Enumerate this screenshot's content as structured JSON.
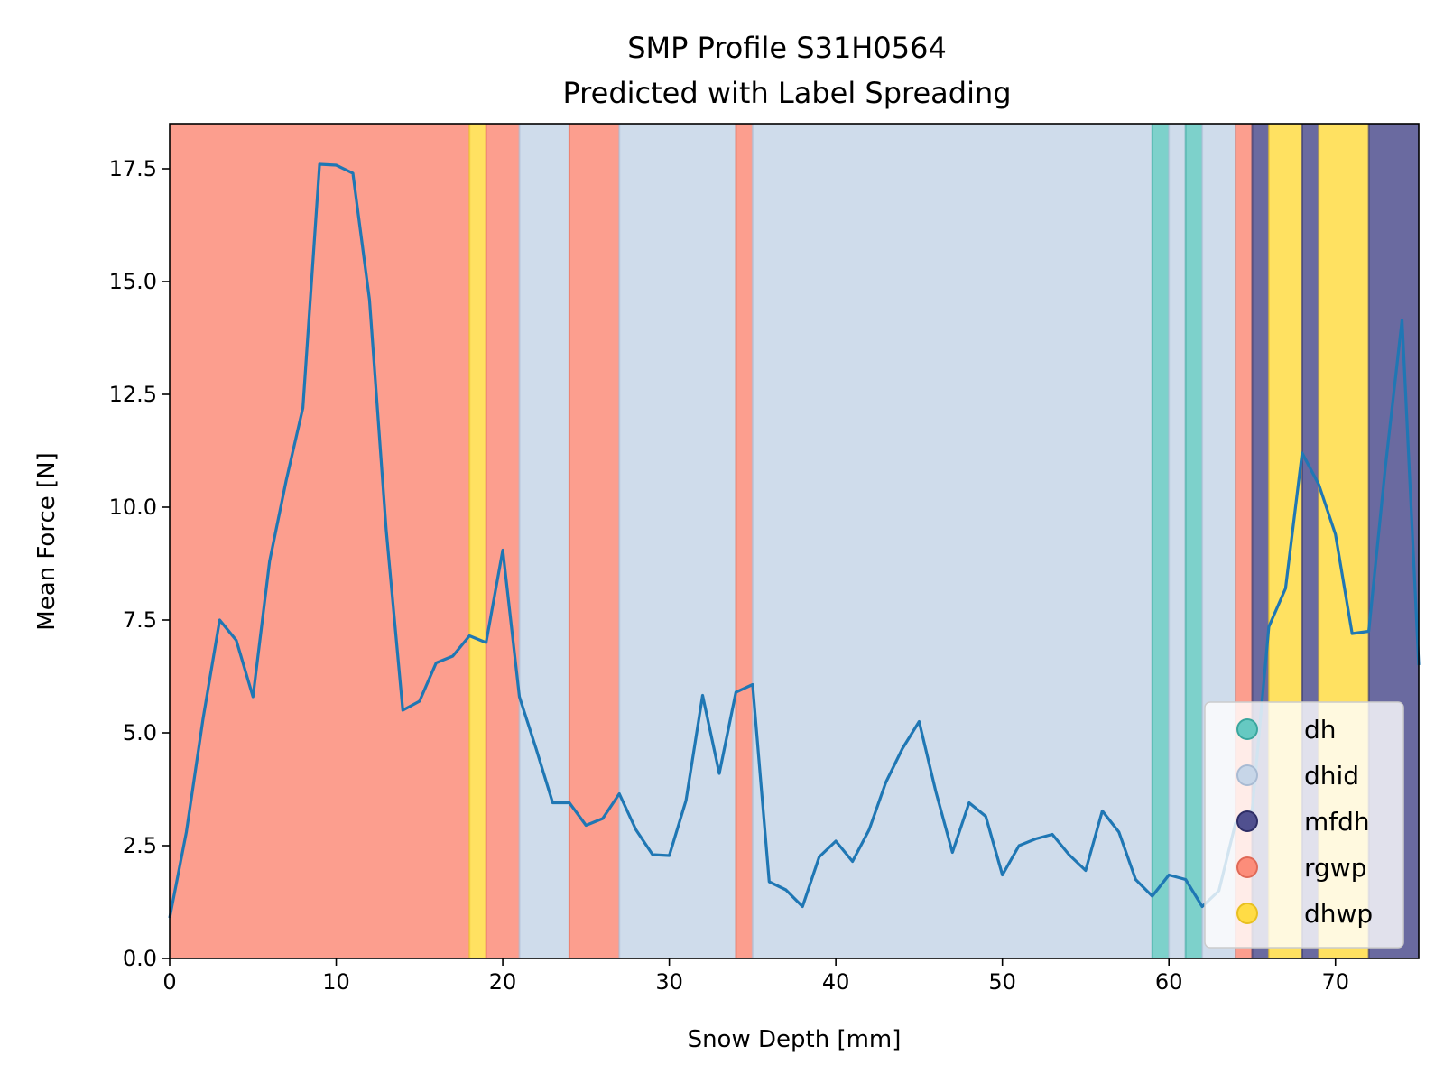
{
  "chart_data": {
    "type": "line",
    "title": "SMP Profile S31H0564",
    "subtitle": "Predicted with Label Spreading",
    "xlabel": "Snow Depth [mm]",
    "ylabel": "Mean Force [N]",
    "xlim": [
      0,
      75
    ],
    "ylim": [
      0,
      18.5
    ],
    "xticks": [
      0,
      10,
      20,
      30,
      40,
      50,
      60,
      70
    ],
    "xtick_labels": [
      "0",
      "10",
      "20",
      "30",
      "40",
      "50",
      "60",
      "70"
    ],
    "yticks": [
      0,
      2.5,
      5,
      7.5,
      10,
      12.5,
      15,
      17.5
    ],
    "ytick_labels": [
      "0.0",
      "2.5",
      "5.0",
      "7.5",
      "10.0",
      "12.5",
      "15.0",
      "17.5"
    ],
    "grid": false,
    "legend_placement": "lower-right",
    "line_color": "#1f77b4",
    "classes": [
      {
        "label": "dh",
        "color": "#66c9c2",
        "edge": "#3aa69e"
      },
      {
        "label": "dhid",
        "color": "#c7d6e8",
        "edge": "#a9bbd3"
      },
      {
        "label": "mfdh",
        "color": "#50508f",
        "edge": "#2e2e66"
      },
      {
        "label": "rgwp",
        "color": "#fc8d7a",
        "edge": "#e06a58"
      },
      {
        "label": "dhwp",
        "color": "#ffdc45",
        "edge": "#e8c020"
      }
    ],
    "segments": [
      {
        "start": 0,
        "end": 18,
        "class": "rgwp"
      },
      {
        "start": 18,
        "end": 19,
        "class": "dhwp"
      },
      {
        "start": 19,
        "end": 21,
        "class": "rgwp"
      },
      {
        "start": 21,
        "end": 24,
        "class": "dhid"
      },
      {
        "start": 24,
        "end": 27,
        "class": "rgwp"
      },
      {
        "start": 27,
        "end": 34,
        "class": "dhid"
      },
      {
        "start": 34,
        "end": 35,
        "class": "rgwp"
      },
      {
        "start": 35,
        "end": 59,
        "class": "dhid"
      },
      {
        "start": 59,
        "end": 60,
        "class": "dh"
      },
      {
        "start": 60,
        "end": 61,
        "class": "dhid"
      },
      {
        "start": 61,
        "end": 62,
        "class": "dh"
      },
      {
        "start": 62,
        "end": 64,
        "class": "dhid"
      },
      {
        "start": 64,
        "end": 65,
        "class": "rgwp"
      },
      {
        "start": 65,
        "end": 66,
        "class": "mfdh"
      },
      {
        "start": 66,
        "end": 68,
        "class": "dhwp"
      },
      {
        "start": 68,
        "end": 69,
        "class": "mfdh"
      },
      {
        "start": 69,
        "end": 72,
        "class": "dhwp"
      },
      {
        "start": 72,
        "end": 75,
        "class": "mfdh"
      }
    ],
    "series": [
      {
        "x": [
          0,
          1,
          2,
          3,
          4,
          5,
          6,
          7,
          8,
          9,
          10,
          11,
          12,
          13,
          14,
          15,
          16,
          17,
          18,
          19,
          20,
          21,
          22,
          23,
          24,
          25,
          26,
          27,
          28,
          29,
          30,
          31,
          32,
          33,
          34,
          35,
          36,
          37,
          38,
          39,
          40,
          41,
          42,
          43,
          44,
          45,
          46,
          47,
          48,
          49,
          50,
          51,
          52,
          53,
          54,
          55,
          56,
          57,
          58,
          59,
          60,
          61,
          62,
          63,
          64,
          65,
          66,
          67,
          68,
          69,
          70,
          71,
          72,
          73,
          74,
          75
        ],
        "y": [
          0.9,
          2.8,
          5.3,
          7.5,
          7.05,
          5.8,
          8.8,
          10.6,
          12.2,
          17.6,
          17.58,
          17.4,
          14.6,
          9.5,
          5.5,
          5.7,
          6.55,
          6.7,
          7.15,
          7.0,
          9.05,
          5.8,
          4.65,
          3.45,
          3.45,
          2.95,
          3.1,
          3.65,
          2.85,
          2.3,
          2.28,
          3.5,
          5.83,
          4.1,
          5.9,
          6.07,
          1.7,
          1.52,
          1.15,
          2.25,
          2.6,
          2.15,
          2.85,
          3.9,
          4.65,
          5.25,
          3.7,
          2.35,
          3.45,
          3.15,
          1.85,
          2.5,
          2.65,
          2.75,
          2.3,
          1.95,
          3.27,
          2.8,
          1.75,
          1.38,
          1.85,
          1.75,
          1.15,
          1.5,
          3.0,
          3.3,
          7.35,
          8.2,
          11.2,
          10.5,
          9.4,
          7.2,
          7.25,
          10.9,
          14.15,
          6.5
        ]
      }
    ]
  }
}
